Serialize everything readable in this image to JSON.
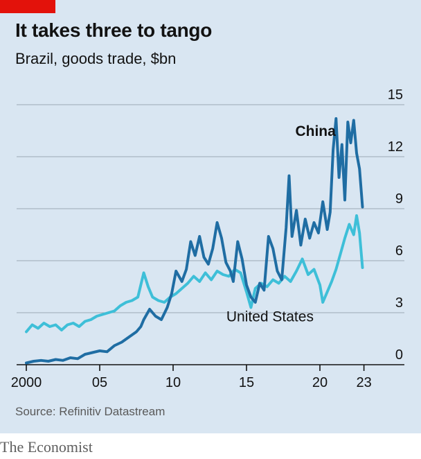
{
  "header": {
    "title": "It takes three to tango",
    "subtitle": "Brazil, goods trade, $bn"
  },
  "footer": {
    "source": "Source: Refinitiv Datastream",
    "brand": "The Economist"
  },
  "colors": {
    "background": "#d9e6f2",
    "accent_red": "#e3120b",
    "china": "#1f6da3",
    "united_states": "#3ebfd8",
    "grid": "#9aa8b4"
  },
  "chart_data": {
    "type": "line",
    "title": "It takes three to tango",
    "subtitle": "Brazil, goods trade, $bn",
    "xlim": [
      2000,
      2023.5
    ],
    "ylim": [
      0,
      15
    ],
    "y_ticks": [
      {
        "value": 0,
        "label": "0"
      },
      {
        "value": 3,
        "label": "3"
      },
      {
        "value": 6,
        "label": "6"
      },
      {
        "value": 9,
        "label": "9"
      },
      {
        "value": 12,
        "label": "12"
      },
      {
        "value": 15,
        "label": "15"
      }
    ],
    "x_ticks": [
      {
        "value": 2000,
        "label": "2000"
      },
      {
        "value": 2005,
        "label": "05"
      },
      {
        "value": 2010,
        "label": "10"
      },
      {
        "value": 2015,
        "label": "15"
      },
      {
        "value": 2020,
        "label": "20"
      },
      {
        "value": 2023,
        "label": "23"
      }
    ],
    "grid": true,
    "y_axis_side": "right",
    "series": [
      {
        "name": "China",
        "color": "#1f6da3",
        "label_year": 2019.7,
        "label_value": 13.2,
        "points": [
          [
            2000.0,
            0.1
          ],
          [
            2000.5,
            0.2
          ],
          [
            2001.0,
            0.25
          ],
          [
            2001.5,
            0.2
          ],
          [
            2002.0,
            0.3
          ],
          [
            2002.5,
            0.25
          ],
          [
            2003.0,
            0.4
          ],
          [
            2003.5,
            0.35
          ],
          [
            2004.0,
            0.6
          ],
          [
            2004.5,
            0.7
          ],
          [
            2005.0,
            0.8
          ],
          [
            2005.5,
            0.75
          ],
          [
            2006.0,
            1.1
          ],
          [
            2006.5,
            1.3
          ],
          [
            2007.0,
            1.6
          ],
          [
            2007.5,
            1.9
          ],
          [
            2007.8,
            2.2
          ],
          [
            2008.0,
            2.6
          ],
          [
            2008.4,
            3.2
          ],
          [
            2008.8,
            2.8
          ],
          [
            2009.2,
            2.6
          ],
          [
            2009.6,
            3.3
          ],
          [
            2009.9,
            4.1
          ],
          [
            2010.2,
            5.4
          ],
          [
            2010.6,
            4.8
          ],
          [
            2010.9,
            5.5
          ],
          [
            2011.2,
            7.1
          ],
          [
            2011.5,
            6.3
          ],
          [
            2011.8,
            7.4
          ],
          [
            2012.1,
            6.2
          ],
          [
            2012.4,
            5.8
          ],
          [
            2012.7,
            6.7
          ],
          [
            2013.0,
            8.2
          ],
          [
            2013.3,
            7.3
          ],
          [
            2013.6,
            5.9
          ],
          [
            2013.9,
            5.4
          ],
          [
            2014.1,
            4.8
          ],
          [
            2014.4,
            7.1
          ],
          [
            2014.7,
            6.1
          ],
          [
            2015.0,
            4.6
          ],
          [
            2015.3,
            3.9
          ],
          [
            2015.6,
            3.6
          ],
          [
            2015.9,
            4.7
          ],
          [
            2016.2,
            4.3
          ],
          [
            2016.5,
            7.4
          ],
          [
            2016.8,
            6.7
          ],
          [
            2017.1,
            5.4
          ],
          [
            2017.4,
            4.9
          ],
          [
            2017.7,
            7.9
          ],
          [
            2017.9,
            10.9
          ],
          [
            2018.1,
            7.4
          ],
          [
            2018.4,
            8.9
          ],
          [
            2018.7,
            6.9
          ],
          [
            2019.0,
            8.4
          ],
          [
            2019.3,
            7.3
          ],
          [
            2019.6,
            8.2
          ],
          [
            2019.9,
            7.6
          ],
          [
            2020.2,
            9.4
          ],
          [
            2020.5,
            7.8
          ],
          [
            2020.7,
            8.8
          ],
          [
            2020.9,
            12.4
          ],
          [
            2021.1,
            14.2
          ],
          [
            2021.3,
            10.8
          ],
          [
            2021.5,
            12.7
          ],
          [
            2021.7,
            9.5
          ],
          [
            2021.9,
            14.0
          ],
          [
            2022.1,
            12.8
          ],
          [
            2022.3,
            14.1
          ],
          [
            2022.5,
            12.2
          ],
          [
            2022.7,
            11.3
          ],
          [
            2022.9,
            9.1
          ]
        ]
      },
      {
        "name": "United States",
        "color": "#3ebfd8",
        "label_year": 2016.6,
        "label_value": 2.5,
        "points": [
          [
            2000.0,
            1.9
          ],
          [
            2000.4,
            2.3
          ],
          [
            2000.8,
            2.1
          ],
          [
            2001.2,
            2.4
          ],
          [
            2001.6,
            2.2
          ],
          [
            2002.0,
            2.3
          ],
          [
            2002.4,
            2.0
          ],
          [
            2002.8,
            2.3
          ],
          [
            2003.2,
            2.4
          ],
          [
            2003.6,
            2.2
          ],
          [
            2004.0,
            2.5
          ],
          [
            2004.4,
            2.6
          ],
          [
            2004.8,
            2.8
          ],
          [
            2005.2,
            2.9
          ],
          [
            2005.6,
            3.0
          ],
          [
            2006.0,
            3.1
          ],
          [
            2006.4,
            3.4
          ],
          [
            2006.8,
            3.6
          ],
          [
            2007.2,
            3.7
          ],
          [
            2007.6,
            3.9
          ],
          [
            2008.0,
            5.3
          ],
          [
            2008.3,
            4.5
          ],
          [
            2008.6,
            3.9
          ],
          [
            2009.0,
            3.7
          ],
          [
            2009.4,
            3.6
          ],
          [
            2009.8,
            3.9
          ],
          [
            2010.2,
            4.1
          ],
          [
            2010.6,
            4.4
          ],
          [
            2011.0,
            4.7
          ],
          [
            2011.4,
            5.1
          ],
          [
            2011.8,
            4.8
          ],
          [
            2012.2,
            5.3
          ],
          [
            2012.6,
            4.9
          ],
          [
            2013.0,
            5.4
          ],
          [
            2013.4,
            5.2
          ],
          [
            2013.8,
            5.1
          ],
          [
            2014.2,
            5.5
          ],
          [
            2014.6,
            5.3
          ],
          [
            2015.0,
            4.2
          ],
          [
            2015.3,
            3.3
          ],
          [
            2015.6,
            4.4
          ],
          [
            2016.0,
            4.7
          ],
          [
            2016.4,
            4.5
          ],
          [
            2016.8,
            4.9
          ],
          [
            2017.2,
            4.7
          ],
          [
            2017.6,
            5.1
          ],
          [
            2018.0,
            4.8
          ],
          [
            2018.4,
            5.4
          ],
          [
            2018.8,
            6.1
          ],
          [
            2019.2,
            5.2
          ],
          [
            2019.6,
            5.5
          ],
          [
            2020.0,
            4.6
          ],
          [
            2020.2,
            3.6
          ],
          [
            2020.5,
            4.2
          ],
          [
            2020.8,
            4.8
          ],
          [
            2021.1,
            5.5
          ],
          [
            2021.4,
            6.4
          ],
          [
            2021.7,
            7.3
          ],
          [
            2022.0,
            8.1
          ],
          [
            2022.3,
            7.5
          ],
          [
            2022.5,
            8.6
          ],
          [
            2022.7,
            7.6
          ],
          [
            2022.9,
            5.6
          ]
        ]
      }
    ]
  }
}
